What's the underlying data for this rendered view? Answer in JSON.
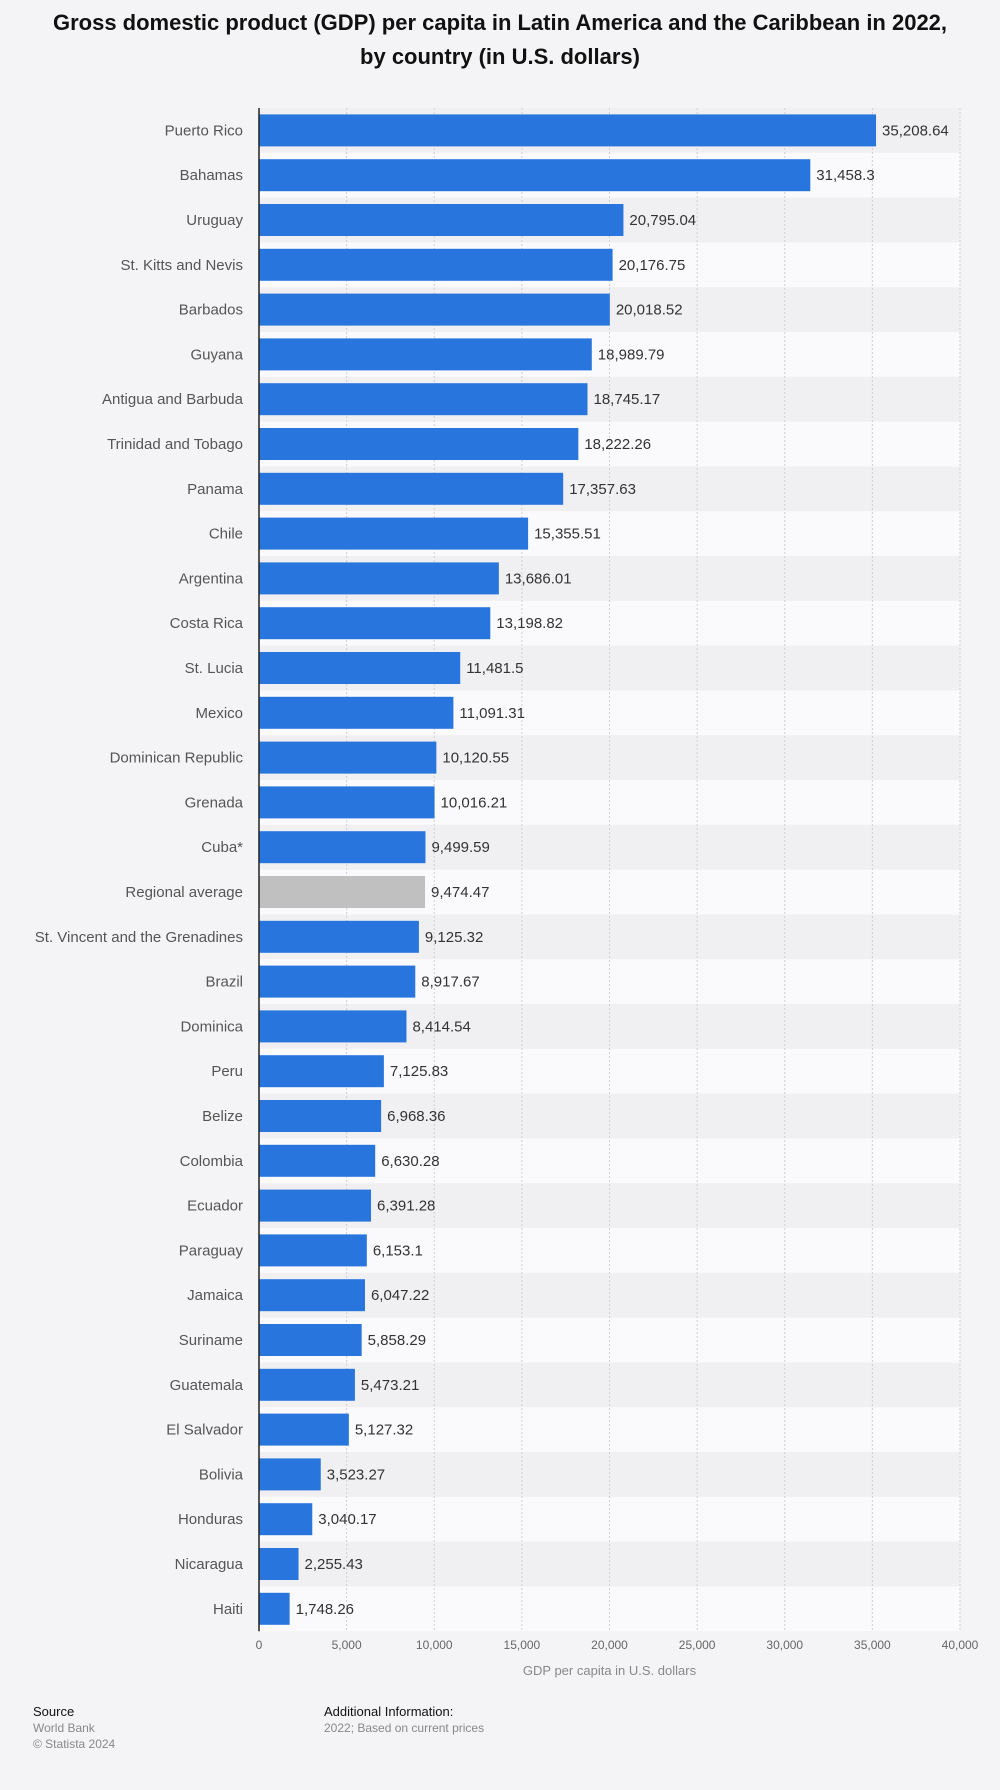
{
  "title_line1": "Gross domestic product (GDP) per capita in Latin America and the Caribbean in 2022,",
  "title_line2": "by country (in U.S. dollars)",
  "colors": {
    "bar": "#2876dd",
    "highlight": "#c0c0c0",
    "band": "#f0f0f2"
  },
  "chart_data": {
    "type": "bar",
    "orientation": "horizontal",
    "categories": [
      "Puerto Rico",
      "Bahamas",
      "Uruguay",
      "St. Kitts and Nevis",
      "Barbados",
      "Guyana",
      "Antigua and Barbuda",
      "Trinidad and Tobago",
      "Panama",
      "Chile",
      "Argentina",
      "Costa Rica",
      "St. Lucia",
      "Mexico",
      "Dominican Republic",
      "Grenada",
      "Cuba*",
      "Regional average",
      "St. Vincent and the Grenadines",
      "Brazil",
      "Dominica",
      "Peru",
      "Belize",
      "Colombia",
      "Ecuador",
      "Paraguay",
      "Jamaica",
      "Suriname",
      "Guatemala",
      "El Salvador",
      "Bolivia",
      "Honduras",
      "Nicaragua",
      "Haiti"
    ],
    "values": [
      35208.64,
      31458.3,
      20795.04,
      20176.75,
      20018.52,
      18989.79,
      18745.17,
      18222.26,
      17357.63,
      15355.51,
      13686.01,
      13198.82,
      11481.5,
      11091.31,
      10120.55,
      10016.21,
      9499.59,
      9474.47,
      9125.32,
      8917.67,
      8414.54,
      7125.83,
      6968.36,
      6630.28,
      6391.28,
      6153.1,
      6047.22,
      5858.29,
      5473.21,
      5127.32,
      3523.27,
      3040.17,
      2255.43,
      1748.26
    ],
    "value_labels": [
      "35,208.64",
      "31,458.3",
      "20,795.04",
      "20,176.75",
      "20,018.52",
      "18,989.79",
      "18,745.17",
      "18,222.26",
      "17,357.63",
      "15,355.51",
      "13,686.01",
      "13,198.82",
      "11,481.5",
      "11,091.31",
      "10,120.55",
      "10,016.21",
      "9,499.59",
      "9,474.47",
      "9,125.32",
      "8,917.67",
      "8,414.54",
      "7,125.83",
      "6,968.36",
      "6,630.28",
      "6,391.28",
      "6,153.1",
      "6,047.22",
      "5,858.29",
      "5,473.21",
      "5,127.32",
      "3,523.27",
      "3,040.17",
      "2,255.43",
      "1,748.26"
    ],
    "highlight_category": "Regional average",
    "xlabel": "GDP per capita in U.S. dollars",
    "xlim": [
      0,
      40000
    ],
    "xticks": [
      0,
      5000,
      10000,
      15000,
      20000,
      25000,
      30000,
      35000,
      40000
    ],
    "xtick_labels": [
      "0",
      "5,000",
      "10,000",
      "15,000",
      "20,000",
      "25,000",
      "30,000",
      "35,000",
      "40,000"
    ],
    "grid": true
  },
  "footer": {
    "source_heading": "Source",
    "source_name": "World Bank",
    "copyright": "© Statista 2024",
    "additional_heading": "Additional Information:",
    "additional_text": "2022; Based on current prices"
  }
}
